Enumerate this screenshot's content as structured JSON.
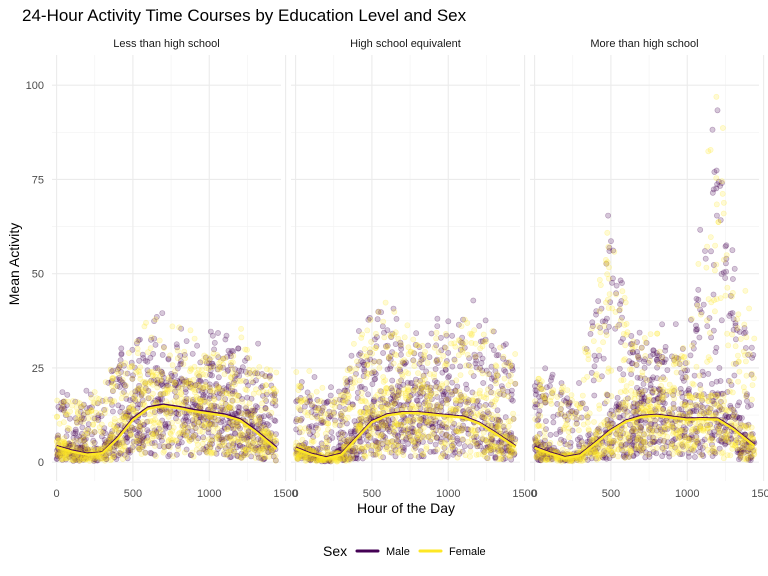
{
  "chart_data": {
    "type": "scatter",
    "title": "24-Hour Activity Time Courses by Education Level and Sex",
    "xlabel": "Hour of the Day",
    "ylabel": "Mean Activity",
    "xlim": [
      -30,
      1470
    ],
    "ylim": [
      -5,
      108
    ],
    "x_ticks": [
      0,
      500,
      1000,
      1500
    ],
    "y_ticks": [
      0,
      25,
      50,
      75,
      100
    ],
    "grid": true,
    "legend": {
      "title": "Sex",
      "position": "bottom",
      "entries": [
        {
          "name": "Male",
          "color": "#440154"
        },
        {
          "name": "Female",
          "color": "#FDE725"
        }
      ]
    },
    "panels": [
      {
        "label": "Less than high school",
        "smooth": {
          "x": [
            0,
            100,
            200,
            300,
            400,
            500,
            600,
            700,
            800,
            900,
            1000,
            1100,
            1200,
            1300,
            1440
          ],
          "Male": [
            4.2,
            3.0,
            2.2,
            2.5,
            6.5,
            11.5,
            14.5,
            15.2,
            14.6,
            13.8,
            13.2,
            12.6,
            11.4,
            8.5,
            3.8
          ],
          "Female": [
            4.0,
            2.8,
            2.0,
            2.4,
            6.2,
            11.2,
            14.2,
            14.9,
            14.3,
            13.5,
            12.9,
            12.3,
            11.1,
            8.2,
            3.5
          ]
        },
        "profile": {
          "x": [
            0,
            100,
            200,
            300,
            400,
            500,
            600,
            700,
            800,
            900,
            1000,
            1100,
            1200,
            1300,
            1440
          ],
          "max": [
            21,
            20,
            19,
            20,
            31,
            38,
            42,
            40,
            37,
            36,
            35,
            36,
            37,
            33,
            26
          ]
        }
      },
      {
        "label": "High school equivalent",
        "smooth": {
          "x": [
            0,
            100,
            200,
            300,
            400,
            500,
            600,
            700,
            800,
            900,
            1000,
            1100,
            1200,
            1300,
            1440
          ],
          "Male": [
            3.8,
            2.2,
            1.2,
            2.2,
            6.5,
            10.8,
            12.6,
            13.2,
            13.2,
            12.8,
            12.4,
            12.0,
            10.5,
            8.0,
            4.2
          ],
          "Female": [
            3.6,
            2.0,
            1.0,
            2.0,
            6.3,
            10.6,
            12.4,
            13.0,
            13.0,
            12.6,
            12.2,
            11.8,
            10.3,
            7.8,
            4.0
          ]
        },
        "profile": {
          "x": [
            0,
            100,
            200,
            300,
            400,
            500,
            600,
            700,
            800,
            900,
            1000,
            1100,
            1200,
            1300,
            1440
          ],
          "max": [
            26,
            24,
            20,
            22,
            34,
            41,
            44,
            41,
            38,
            38,
            39,
            47,
            41,
            37,
            31
          ]
        }
      },
      {
        "label": "More than high school",
        "smooth": {
          "x": [
            0,
            100,
            200,
            300,
            400,
            500,
            600,
            700,
            800,
            900,
            1000,
            1100,
            1200,
            1300,
            1440
          ],
          "Male": [
            4.0,
            2.5,
            1.3,
            2.0,
            5.2,
            8.5,
            11.0,
            12.2,
            12.5,
            12.0,
            11.5,
            11.6,
            11.5,
            9.0,
            4.5
          ],
          "Female": [
            3.8,
            2.3,
            1.1,
            1.8,
            5.0,
            8.3,
            10.8,
            12.0,
            12.3,
            11.8,
            11.3,
            11.4,
            11.3,
            8.8,
            4.3
          ]
        },
        "profile": {
          "x": [
            0,
            100,
            200,
            300,
            400,
            500,
            600,
            700,
            800,
            900,
            1000,
            1100,
            1200,
            1300,
            1440
          ],
          "max": [
            28,
            25,
            23,
            22,
            52,
            74,
            45,
            40,
            38,
            37,
            38,
            75,
            104,
            60,
            35
          ]
        }
      }
    ]
  }
}
